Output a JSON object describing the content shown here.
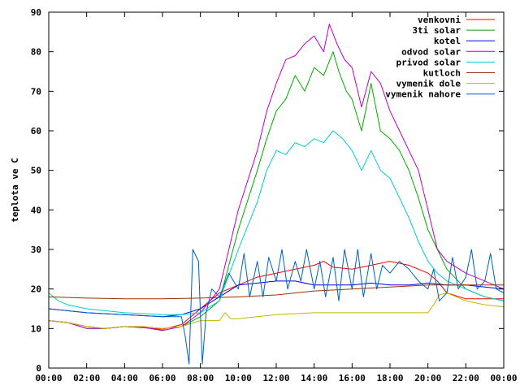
{
  "chart_data": {
    "type": "line",
    "title": "",
    "xlabel": "",
    "ylabel": "teplota ve C",
    "xlim": [
      0,
      24
    ],
    "ylim": [
      0,
      90
    ],
    "x_ticks": [
      0,
      2,
      4,
      6,
      8,
      10,
      12,
      14,
      16,
      18,
      20,
      22,
      24
    ],
    "x_tick_labels": [
      "00:00",
      "02:00",
      "04:00",
      "06:00",
      "08:00",
      "10:00",
      "12:00",
      "14:00",
      "16:00",
      "18:00",
      "20:00",
      "22:00",
      "00:00"
    ],
    "y_ticks": [
      0,
      10,
      20,
      30,
      40,
      50,
      60,
      70,
      80,
      90
    ],
    "y_tick_labels": [
      "0",
      "10",
      "20",
      "30",
      "40",
      "50",
      "60",
      "70",
      "80",
      "90"
    ],
    "grid": false,
    "legend_position": "top-right",
    "series": [
      {
        "name": "venkovni",
        "color": "#ff0000",
        "points": [
          [
            0,
            12
          ],
          [
            1,
            11.5
          ],
          [
            2,
            10.5
          ],
          [
            3,
            10
          ],
          [
            4,
            10.5
          ],
          [
            5,
            10.2
          ],
          [
            6,
            9.8
          ],
          [
            7,
            11
          ],
          [
            8,
            15
          ],
          [
            9,
            19
          ],
          [
            10,
            21
          ],
          [
            11,
            23
          ],
          [
            12,
            24
          ],
          [
            13,
            25
          ],
          [
            14,
            26
          ],
          [
            14.5,
            27
          ],
          [
            15,
            25.5
          ],
          [
            16,
            25
          ],
          [
            17,
            26
          ],
          [
            18,
            27
          ],
          [
            19,
            26
          ],
          [
            20,
            24
          ],
          [
            20.5,
            22
          ],
          [
            21,
            19
          ],
          [
            22,
            17.5
          ],
          [
            23,
            17.5
          ],
          [
            24,
            17.5
          ]
        ]
      },
      {
        "name": "3ti solar",
        "color": "#00aa00",
        "points": [
          [
            0,
            12
          ],
          [
            1,
            11.5
          ],
          [
            2,
            10
          ],
          [
            3,
            10
          ],
          [
            4,
            10.5
          ],
          [
            5,
            10.3
          ],
          [
            6,
            9.5
          ],
          [
            7,
            10.5
          ],
          [
            8,
            13
          ],
          [
            9,
            17
          ],
          [
            10,
            35
          ],
          [
            11,
            50
          ],
          [
            11.5,
            58
          ],
          [
            12,
            65
          ],
          [
            12.5,
            68
          ],
          [
            13,
            74
          ],
          [
            13.5,
            70
          ],
          [
            14,
            76
          ],
          [
            14.5,
            74
          ],
          [
            15,
            80
          ],
          [
            15.3,
            75
          ],
          [
            15.7,
            70
          ],
          [
            16,
            68
          ],
          [
            16.5,
            60
          ],
          [
            17,
            72
          ],
          [
            17.5,
            60
          ],
          [
            18,
            58
          ],
          [
            18.5,
            55
          ],
          [
            19,
            50
          ],
          [
            19.5,
            43
          ],
          [
            20,
            35
          ],
          [
            20.5,
            30
          ],
          [
            21,
            25
          ],
          [
            22,
            20
          ],
          [
            23,
            18
          ],
          [
            24,
            17
          ]
        ]
      },
      {
        "name": "kotel",
        "color": "#0000ff",
        "points": [
          [
            0,
            15
          ],
          [
            2,
            14
          ],
          [
            4,
            13.5
          ],
          [
            6,
            13
          ],
          [
            7,
            13.5
          ],
          [
            8,
            15
          ],
          [
            9,
            18
          ],
          [
            10,
            21
          ],
          [
            11,
            21.5
          ],
          [
            12,
            22
          ],
          [
            13,
            22
          ],
          [
            14,
            21
          ],
          [
            15,
            21
          ],
          [
            16,
            21
          ],
          [
            17,
            21.5
          ],
          [
            18,
            21
          ],
          [
            19,
            21
          ],
          [
            20,
            21.5
          ],
          [
            21,
            21
          ],
          [
            22,
            21
          ],
          [
            23,
            20.5
          ],
          [
            24,
            20
          ]
        ]
      },
      {
        "name": "odvod solar",
        "color": "#c000c0",
        "points": [
          [
            0,
            12
          ],
          [
            1,
            11.5
          ],
          [
            2,
            10
          ],
          [
            3,
            10
          ],
          [
            4,
            10.5
          ],
          [
            5,
            10.3
          ],
          [
            6,
            9.5
          ],
          [
            7,
            10.5
          ],
          [
            8,
            14
          ],
          [
            9,
            20
          ],
          [
            10,
            40
          ],
          [
            11,
            55
          ],
          [
            11.5,
            65
          ],
          [
            12,
            72
          ],
          [
            12.5,
            78
          ],
          [
            13,
            79
          ],
          [
            13.5,
            82
          ],
          [
            14,
            84
          ],
          [
            14.5,
            80
          ],
          [
            14.8,
            87
          ],
          [
            15.2,
            82
          ],
          [
            15.6,
            78
          ],
          [
            16,
            76
          ],
          [
            16.5,
            66
          ],
          [
            17,
            75
          ],
          [
            17.5,
            72
          ],
          [
            18,
            65
          ],
          [
            18.5,
            60
          ],
          [
            19,
            55
          ],
          [
            19.5,
            50
          ],
          [
            20,
            40
          ],
          [
            20.5,
            30
          ],
          [
            21,
            27
          ],
          [
            22,
            24
          ],
          [
            23,
            22
          ],
          [
            24,
            20
          ]
        ]
      },
      {
        "name": "privod solar",
        "color": "#00cccc",
        "points": [
          [
            0,
            19
          ],
          [
            0.5,
            17
          ],
          [
            1,
            16
          ],
          [
            2,
            15
          ],
          [
            4,
            14
          ],
          [
            6,
            13.5
          ],
          [
            7,
            13.5
          ],
          [
            8,
            14
          ],
          [
            9,
            17
          ],
          [
            10,
            30
          ],
          [
            11,
            42
          ],
          [
            11.5,
            50
          ],
          [
            12,
            55
          ],
          [
            12.5,
            54
          ],
          [
            13,
            57
          ],
          [
            13.5,
            56
          ],
          [
            14,
            58
          ],
          [
            14.5,
            57
          ],
          [
            15,
            60
          ],
          [
            15.5,
            58
          ],
          [
            16,
            55
          ],
          [
            16.5,
            50
          ],
          [
            17,
            55
          ],
          [
            17.5,
            50
          ],
          [
            18,
            48
          ],
          [
            18.5,
            43
          ],
          [
            19,
            38
          ],
          [
            19.5,
            32
          ],
          [
            20,
            27
          ],
          [
            20.5,
            24
          ],
          [
            21,
            22
          ],
          [
            22,
            20
          ],
          [
            23,
            18
          ],
          [
            24,
            17
          ]
        ]
      },
      {
        "name": "kutloch",
        "color": "#a03000",
        "points": [
          [
            0,
            18
          ],
          [
            2,
            17.7
          ],
          [
            4,
            17.5
          ],
          [
            6,
            17.5
          ],
          [
            8,
            17.7
          ],
          [
            10,
            18
          ],
          [
            12,
            18.5
          ],
          [
            14,
            19.5
          ],
          [
            16,
            20
          ],
          [
            18,
            20.5
          ],
          [
            20,
            21
          ],
          [
            22,
            21
          ],
          [
            24,
            21
          ]
        ]
      },
      {
        "name": "vymenik dole",
        "color": "#c8b400",
        "points": [
          [
            0,
            12
          ],
          [
            1,
            11.5
          ],
          [
            2,
            10.5
          ],
          [
            3,
            10
          ],
          [
            4,
            10.5
          ],
          [
            5,
            10.5
          ],
          [
            6,
            10
          ],
          [
            7,
            10.5
          ],
          [
            8,
            12
          ],
          [
            9,
            12
          ],
          [
            9.3,
            14
          ],
          [
            9.6,
            12.5
          ],
          [
            10,
            12.5
          ],
          [
            11,
            13
          ],
          [
            12,
            13.5
          ],
          [
            14,
            14
          ],
          [
            16,
            14
          ],
          [
            18,
            14
          ],
          [
            19,
            14
          ],
          [
            20,
            14
          ],
          [
            20.3,
            16
          ],
          [
            20.6,
            18.5
          ],
          [
            21,
            19
          ],
          [
            22,
            17
          ],
          [
            23,
            16
          ],
          [
            24,
            15.5
          ]
        ]
      },
      {
        "name": "vymenik nahore",
        "color": "#0060c0",
        "points": [
          [
            0,
            15
          ],
          [
            2,
            14
          ],
          [
            4,
            13.5
          ],
          [
            6,
            13
          ],
          [
            7,
            13
          ],
          [
            7.2,
            8
          ],
          [
            7.4,
            1
          ],
          [
            7.6,
            30
          ],
          [
            7.9,
            27
          ],
          [
            8.1,
            1
          ],
          [
            8.3,
            14
          ],
          [
            8.6,
            20
          ],
          [
            9,
            18
          ],
          [
            9.5,
            24
          ],
          [
            10,
            20
          ],
          [
            10.3,
            29
          ],
          [
            10.6,
            18
          ],
          [
            11,
            27
          ],
          [
            11.3,
            18
          ],
          [
            11.6,
            28
          ],
          [
            12,
            22
          ],
          [
            12.3,
            30
          ],
          [
            12.6,
            20
          ],
          [
            13,
            27
          ],
          [
            13.3,
            22
          ],
          [
            13.6,
            30
          ],
          [
            14,
            20
          ],
          [
            14.3,
            27
          ],
          [
            14.6,
            18
          ],
          [
            15,
            28
          ],
          [
            15.3,
            17
          ],
          [
            15.6,
            30
          ],
          [
            16,
            20
          ],
          [
            16.3,
            30
          ],
          [
            16.6,
            18
          ],
          [
            17,
            29
          ],
          [
            17.3,
            20
          ],
          [
            17.6,
            26
          ],
          [
            18,
            24
          ],
          [
            18.5,
            27
          ],
          [
            19,
            25
          ],
          [
            19.5,
            22
          ],
          [
            20,
            20
          ],
          [
            20.3,
            25
          ],
          [
            20.6,
            17
          ],
          [
            21,
            19
          ],
          [
            21.3,
            28
          ],
          [
            21.6,
            20
          ],
          [
            22,
            23
          ],
          [
            22.3,
            30
          ],
          [
            22.6,
            20
          ],
          [
            23,
            22
          ],
          [
            23.3,
            29
          ],
          [
            23.6,
            20
          ],
          [
            24,
            19
          ]
        ]
      }
    ]
  }
}
